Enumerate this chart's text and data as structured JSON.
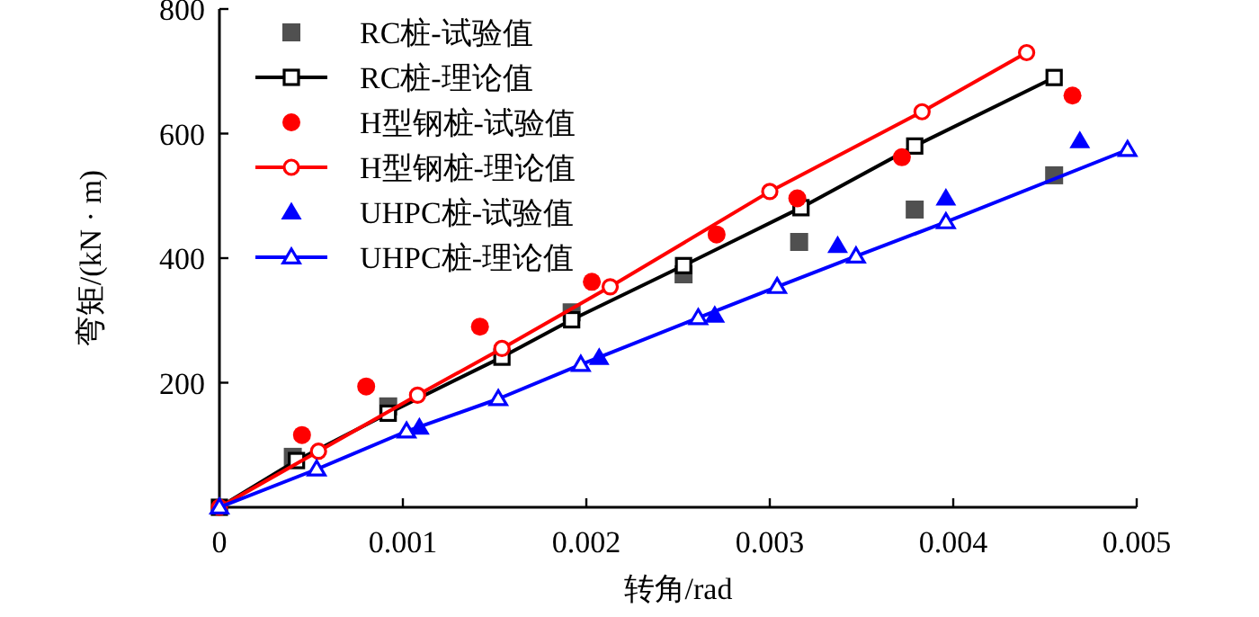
{
  "chart_data": {
    "type": "line",
    "xlabel": "转角/rad",
    "ylabel": "弯矩/(kN · m)",
    "xlim": [
      0,
      0.005
    ],
    "ylim": [
      0,
      800
    ],
    "xticks": [
      0,
      0.001,
      0.002,
      0.003,
      0.004,
      0.005
    ],
    "yticks": [
      200,
      400,
      600,
      800
    ],
    "grid": false,
    "legend": "top left",
    "series": [
      {
        "name": "RC桩-试验值",
        "type": "scatter",
        "marker": "square",
        "color": "#505050",
        "x": [
          0.0004,
          0.00092,
          0.00192,
          0.00253,
          0.00316,
          0.00379,
          0.00455
        ],
        "values": [
          81,
          162,
          313,
          374,
          426,
          478,
          533
        ]
      },
      {
        "name": "RC桩-理论值",
        "marker": "square",
        "color": "#000000",
        "x": [
          0,
          0.00042,
          0.00092,
          0.00154,
          0.00192,
          0.00253,
          0.00317,
          0.00379,
          0.00455
        ],
        "values": [
          0,
          75,
          151,
          241,
          301,
          388,
          481,
          580,
          690
        ]
      },
      {
        "name": "H型钢桩-试验值",
        "type": "scatter",
        "marker": "circle",
        "color": "#ff0000",
        "x": [
          0.00045,
          0.0008,
          0.00142,
          0.00203,
          0.00271,
          0.00315,
          0.00372,
          0.00465
        ],
        "values": [
          116,
          194,
          290,
          362,
          438,
          496,
          562,
          661
        ]
      },
      {
        "name": "H型钢桩-理论值",
        "marker": "circle",
        "color": "#ff0000",
        "x": [
          0,
          0.00054,
          0.00108,
          0.00154,
          0.00213,
          0.003,
          0.00383,
          0.0044
        ],
        "values": [
          0,
          90,
          180,
          255,
          354,
          507,
          635,
          730
        ]
      },
      {
        "name": "UHPC桩-试验值",
        "type": "scatter",
        "marker": "triangle",
        "color": "#0000ff",
        "x": [
          0.00109,
          0.00207,
          0.0027,
          0.00337,
          0.00396,
          0.00469
        ],
        "values": [
          128,
          240,
          308,
          420,
          496,
          588
        ]
      },
      {
        "name": "UHPC桩-理论值",
        "marker": "triangle",
        "color": "#0000ff",
        "x": [
          0,
          0.00053,
          0.00102,
          0.00152,
          0.00197,
          0.00261,
          0.00304,
          0.00347,
          0.00396,
          0.00495
        ],
        "values": [
          0,
          61,
          122,
          174,
          229,
          304,
          354,
          403,
          458,
          574
        ]
      }
    ]
  }
}
